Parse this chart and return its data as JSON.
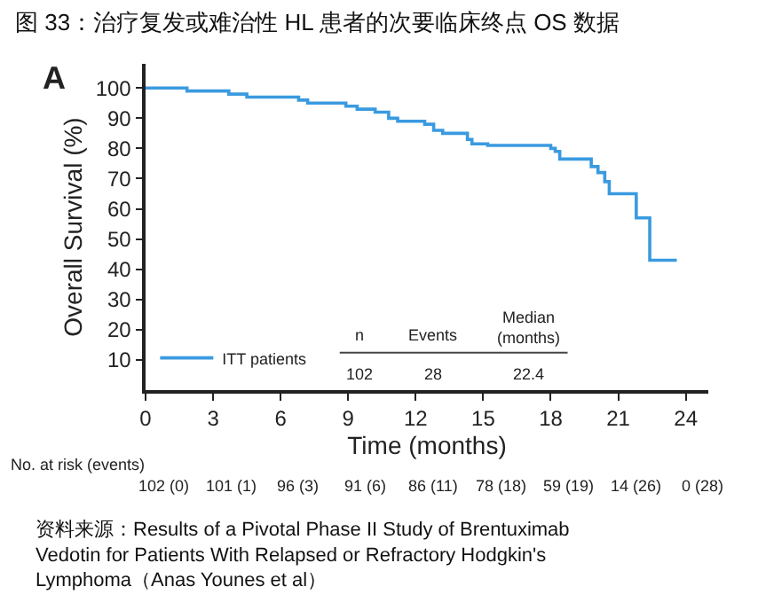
{
  "chart_data": {
    "type": "step",
    "title": "图 33：治疗复发或难治性 HL 患者的次要临床终点 OS 数据",
    "xlabel": "Time (months)",
    "ylabel": "Overall Survival (%)",
    "x": [
      0,
      1.84,
      3.7,
      4.5,
      6.8,
      7.2,
      8.9,
      9.4,
      10.2,
      10.8,
      11.2,
      12.4,
      12.8,
      13.2,
      14.3,
      14.5,
      15.2,
      18.0,
      18.2,
      18.4,
      19.8,
      20.1,
      20.4,
      20.6,
      21.8,
      22.4,
      23.6
    ],
    "series": [
      {
        "name": "ITT patients",
        "color": "#3a9ae0",
        "values": [
          100,
          99,
          98,
          97,
          96,
          95,
          94,
          93,
          92,
          90,
          89,
          88,
          86,
          85,
          83,
          81.5,
          81,
          80,
          79,
          76.5,
          74,
          72,
          69,
          65,
          57,
          43,
          43
        ]
      }
    ],
    "xlim": [
      0,
      25
    ],
    "xticks": [
      0,
      3,
      6,
      9,
      12,
      15,
      18,
      21,
      24
    ],
    "ylim": [
      0,
      108
    ],
    "yticks": [
      10,
      20,
      30,
      40,
      50,
      60,
      70,
      80,
      90,
      100
    ],
    "legend": "bottom left",
    "line_style": "solid",
    "marker": "none",
    "annotations": [
      "A",
      "n",
      "Events",
      "Median\n(months)",
      "102",
      "28",
      "22.4",
      "No. at risk (events)",
      "102 (0)",
      "101 (1)",
      "96 (3)",
      "91 (6)",
      "86 (11)",
      "78 (18)",
      "59 (19)",
      "14 (26)",
      "0 (28)",
      "资料来源：Results of a Pivotal Phase II Study of Brentuximab Vedotin for Patients With Relapsed or Refractory Hodgkin's Lymphoma（Anas Younes et al）"
    ]
  }
}
